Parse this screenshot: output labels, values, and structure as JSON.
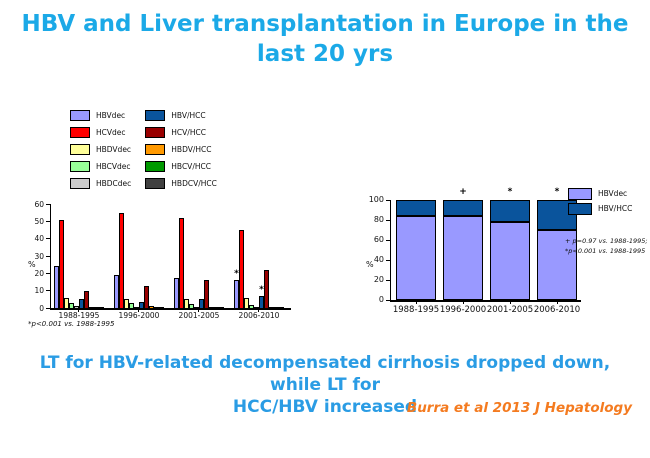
{
  "slide": {
    "title_line1": "HBV and Liver transplantation in Europe in the",
    "title_line2": "last 20 yrs",
    "message_line1": "LT for HBV-related decompensated cirrhosis dropped down, while LT for",
    "message_line2": "HCC/HBV increased",
    "citation": "Burra et al 2013 J Hepatology",
    "colors": {
      "title": "#1BA9E7",
      "message": "#2A9CE4",
      "citation": "#F47B20"
    }
  },
  "chart_data": [
    {
      "type": "bar",
      "title": "",
      "xlabel": "",
      "ylabel": "%",
      "ylim": [
        0,
        60
      ],
      "yticks": [
        0,
        10,
        20,
        30,
        40,
        50,
        60
      ],
      "categories": [
        "1988-1995",
        "1996-2000",
        "2001-2005",
        "2006-2010"
      ],
      "series": [
        {
          "name": "HBVdec",
          "color": "#9999FF",
          "values": [
            24,
            19,
            17.5,
            16
          ]
        },
        {
          "name": "HCVdec",
          "color": "#FF0000",
          "values": [
            51,
            55,
            52,
            45
          ]
        },
        {
          "name": "HBDVdec",
          "color": "#FFFF99",
          "values": [
            6,
            5,
            5,
            5.5
          ]
        },
        {
          "name": "HBCVdec",
          "color": "#99FF99",
          "values": [
            3,
            3,
            2.5,
            2
          ]
        },
        {
          "name": "HBDCdec",
          "color": "#CCCCCC",
          "values": [
            1,
            0.5,
            0.5,
            0.5
          ]
        },
        {
          "name": "HBV/HCC",
          "color": "#0A549C",
          "values": [
            5,
            3.5,
            5,
            7
          ]
        },
        {
          "name": "HCV/HCC",
          "color": "#990000",
          "values": [
            10,
            12.5,
            16,
            22
          ]
        },
        {
          "name": "HBDV/HCC",
          "color": "#FF9900",
          "values": [
            0.5,
            1,
            0.5,
            0.5
          ]
        },
        {
          "name": "HBCV/HCC",
          "color": "#009900",
          "values": [
            0.4,
            0.4,
            0.4,
            0.4
          ]
        },
        {
          "name": "HBDCV/HCC",
          "color": "#404040",
          "values": [
            0.4,
            0.4,
            0.4,
            0.4
          ]
        }
      ],
      "annotations": [
        {
          "group_index": 3,
          "series_index": 0,
          "symbol": "*"
        },
        {
          "group_index": 3,
          "series_index": 5,
          "symbol": "*"
        }
      ],
      "footnote": "*p<0.001 vs. 1988-1995",
      "legend_position": "top-left",
      "grid": false
    },
    {
      "type": "bar",
      "stacked": true,
      "title": "",
      "xlabel": "",
      "ylabel": "%",
      "ylim": [
        0,
        100
      ],
      "yticks": [
        0,
        20,
        40,
        60,
        80,
        100
      ],
      "categories": [
        "1988-1995",
        "1996-2000",
        "2001-2005",
        "2006-2010"
      ],
      "series": [
        {
          "name": "HBVdec",
          "color": "#9999FF",
          "values": [
            84,
            84,
            78,
            70
          ]
        },
        {
          "name": "HBV/HCC",
          "color": "#0A549C",
          "values": [
            16,
            16,
            22,
            30
          ]
        }
      ],
      "bar_symbols": [
        "",
        "+",
        "*",
        "*"
      ],
      "note_line1": "+ p=0.97 vs. 1988-1995;",
      "note_line2": "*p<0.001 vs. 1988-1995",
      "legend_position": "right",
      "grid": false
    }
  ]
}
